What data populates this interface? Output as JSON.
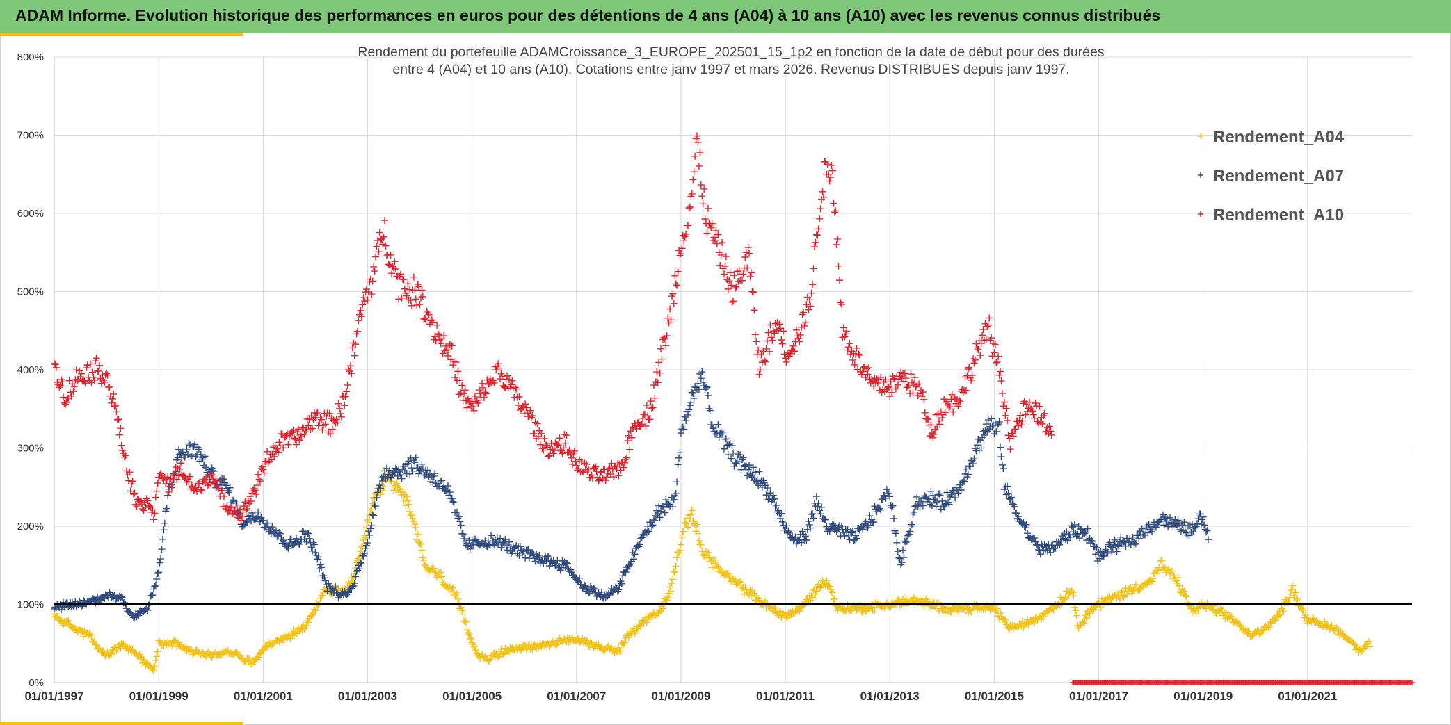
{
  "header": {
    "title": "ADAM Informe. Evolution historique des performances en euros pour des détentions de 4 ans (A04) à 10 ans (A10) avec les revenus connus distribués"
  },
  "colors": {
    "header_bg": "#7fc87a",
    "accent_bar": "#f2c21a",
    "a04": "#f2c21a",
    "a07": "#2e4a7d",
    "a10": "#e0202a",
    "reference_line": "#000000",
    "grid": "#d9d9d9"
  },
  "chart_data": {
    "type": "scatter",
    "title_line1": "Rendement du portefeuille ADAMCroissance_3_EUROPE_202501_15_1p2  en fonction de la date de début pour des durées",
    "title_line2": "entre 4 (A04) et 10 ans (A10). Cotations entre janv 1997 et mars 2026. Revenus DISTRIBUES depuis janv 1997.",
    "xlabel": "",
    "ylabel": "",
    "xlim": [
      1997.0,
      2023.0
    ],
    "ylim": [
      0,
      800
    ],
    "y_ticks": [
      0,
      100,
      200,
      300,
      400,
      500,
      600,
      700,
      800
    ],
    "y_tick_labels": [
      "0%",
      "100%",
      "200%",
      "300%",
      "400%",
      "500%",
      "600%",
      "700%",
      "800%"
    ],
    "x_ticks": [
      1997,
      1999,
      2001,
      2003,
      2005,
      2007,
      2009,
      2011,
      2013,
      2015,
      2017,
      2019,
      2021
    ],
    "x_tick_labels": [
      "01/01/1997",
      "01/01/1999",
      "01/01/2001",
      "01/01/2003",
      "01/01/2005",
      "01/01/2007",
      "01/01/2009",
      "01/01/2011",
      "01/01/2013",
      "01/01/2015",
      "01/01/2017",
      "01/01/2019",
      "01/01/2021"
    ],
    "grid": true,
    "legend_position": "top-right",
    "reference_line_y": 100,
    "zero_markers_x_range": [
      2016.5,
      2023.0
    ],
    "series": [
      {
        "name": "Rendement_A04",
        "color": "#f2c21a",
        "marker": "+",
        "x_start": 1997.0,
        "x_end": 2022.2,
        "keypoints": [
          [
            1997.0,
            85
          ],
          [
            1997.5,
            65
          ],
          [
            1997.7,
            60
          ],
          [
            1997.8,
            45
          ],
          [
            1998.0,
            35
          ],
          [
            1998.3,
            48
          ],
          [
            1998.6,
            35
          ],
          [
            1998.9,
            15
          ],
          [
            1999.0,
            50
          ],
          [
            1999.3,
            52
          ],
          [
            1999.6,
            40
          ],
          [
            2000.0,
            35
          ],
          [
            2000.4,
            40
          ],
          [
            2000.8,
            25
          ],
          [
            2001.0,
            45
          ],
          [
            2001.5,
            60
          ],
          [
            2001.8,
            70
          ],
          [
            2002.0,
            95
          ],
          [
            2002.2,
            120
          ],
          [
            2002.5,
            115
          ],
          [
            2002.7,
            130
          ],
          [
            2002.9,
            170
          ],
          [
            2003.1,
            230
          ],
          [
            2003.4,
            265
          ],
          [
            2003.7,
            240
          ],
          [
            2003.9,
            200
          ],
          [
            2004.1,
            150
          ],
          [
            2004.4,
            135
          ],
          [
            2004.7,
            110
          ],
          [
            2004.9,
            70
          ],
          [
            2005.1,
            35
          ],
          [
            2005.3,
            30
          ],
          [
            2005.6,
            40
          ],
          [
            2006.0,
            45
          ],
          [
            2006.5,
            50
          ],
          [
            2007.0,
            55
          ],
          [
            2007.5,
            45
          ],
          [
            2007.8,
            40
          ],
          [
            2008.0,
            60
          ],
          [
            2008.3,
            80
          ],
          [
            2008.6,
            90
          ],
          [
            2008.8,
            120
          ],
          [
            2009.0,
            180
          ],
          [
            2009.2,
            220
          ],
          [
            2009.4,
            170
          ],
          [
            2009.8,
            140
          ],
          [
            2010.2,
            120
          ],
          [
            2010.6,
            100
          ],
          [
            2011.0,
            85
          ],
          [
            2011.3,
            95
          ],
          [
            2011.6,
            120
          ],
          [
            2011.8,
            130
          ],
          [
            2012.0,
            95
          ],
          [
            2012.5,
            95
          ],
          [
            2013.0,
            100
          ],
          [
            2013.5,
            105
          ],
          [
            2014.0,
            95
          ],
          [
            2014.5,
            95
          ],
          [
            2015.0,
            95
          ],
          [
            2015.3,
            70
          ],
          [
            2015.6,
            75
          ],
          [
            2015.9,
            85
          ],
          [
            2016.2,
            100
          ],
          [
            2016.5,
            120
          ],
          [
            2016.6,
            70
          ],
          [
            2016.8,
            90
          ],
          [
            2017.0,
            100
          ],
          [
            2017.5,
            115
          ],
          [
            2018.0,
            130
          ],
          [
            2018.2,
            150
          ],
          [
            2018.5,
            130
          ],
          [
            2018.8,
            90
          ],
          [
            2019.0,
            100
          ],
          [
            2019.3,
            90
          ],
          [
            2019.6,
            80
          ],
          [
            2019.9,
            60
          ],
          [
            2020.2,
            70
          ],
          [
            2020.5,
            90
          ],
          [
            2020.7,
            120
          ],
          [
            2021.0,
            80
          ],
          [
            2021.5,
            70
          ],
          [
            2021.8,
            55
          ],
          [
            2022.0,
            40
          ],
          [
            2022.2,
            50
          ]
        ]
      },
      {
        "name": "Rendement_A07",
        "color": "#2e4a7d",
        "marker": "+",
        "x_start": 1997.0,
        "x_end": 2019.1,
        "keypoints": [
          [
            1997.0,
            95
          ],
          [
            1997.4,
            100
          ],
          [
            1997.8,
            105
          ],
          [
            1998.0,
            112
          ],
          [
            1998.3,
            108
          ],
          [
            1998.5,
            85
          ],
          [
            1998.8,
            95
          ],
          [
            1999.0,
            140
          ],
          [
            1999.2,
            250
          ],
          [
            1999.4,
            290
          ],
          [
            1999.7,
            300
          ],
          [
            2000.0,
            265
          ],
          [
            2000.3,
            250
          ],
          [
            2000.6,
            205
          ],
          [
            2000.9,
            215
          ],
          [
            2001.2,
            195
          ],
          [
            2001.5,
            175
          ],
          [
            2001.8,
            190
          ],
          [
            2002.0,
            170
          ],
          [
            2002.2,
            125
          ],
          [
            2002.5,
            110
          ],
          [
            2002.7,
            120
          ],
          [
            2002.9,
            160
          ],
          [
            2003.1,
            210
          ],
          [
            2003.3,
            270
          ],
          [
            2003.6,
            270
          ],
          [
            2003.9,
            280
          ],
          [
            2004.2,
            265
          ],
          [
            2004.5,
            250
          ],
          [
            2004.7,
            215
          ],
          [
            2004.9,
            175
          ],
          [
            2005.2,
            180
          ],
          [
            2005.5,
            180
          ],
          [
            2006.0,
            165
          ],
          [
            2006.5,
            155
          ],
          [
            2006.8,
            150
          ],
          [
            2007.1,
            125
          ],
          [
            2007.5,
            110
          ],
          [
            2007.8,
            120
          ],
          [
            2008.0,
            150
          ],
          [
            2008.3,
            190
          ],
          [
            2008.6,
            220
          ],
          [
            2008.9,
            235
          ],
          [
            2009.0,
            320
          ],
          [
            2009.2,
            360
          ],
          [
            2009.4,
            395
          ],
          [
            2009.6,
            330
          ],
          [
            2010.0,
            290
          ],
          [
            2010.5,
            260
          ],
          [
            2010.8,
            230
          ],
          [
            2011.0,
            195
          ],
          [
            2011.2,
            180
          ],
          [
            2011.4,
            190
          ],
          [
            2011.6,
            230
          ],
          [
            2011.8,
            200
          ],
          [
            2012.0,
            195
          ],
          [
            2012.3,
            185
          ],
          [
            2012.6,
            205
          ],
          [
            2013.0,
            245
          ],
          [
            2013.2,
            150
          ],
          [
            2013.5,
            230
          ],
          [
            2013.8,
            235
          ],
          [
            2014.0,
            230
          ],
          [
            2014.3,
            245
          ],
          [
            2014.6,
            290
          ],
          [
            2014.9,
            330
          ],
          [
            2015.1,
            320
          ],
          [
            2015.2,
            250
          ],
          [
            2015.4,
            220
          ],
          [
            2015.7,
            185
          ],
          [
            2015.9,
            170
          ],
          [
            2016.2,
            175
          ],
          [
            2016.5,
            195
          ],
          [
            2016.8,
            190
          ],
          [
            2017.0,
            160
          ],
          [
            2017.3,
            175
          ],
          [
            2017.6,
            180
          ],
          [
            2017.9,
            195
          ],
          [
            2018.2,
            210
          ],
          [
            2018.5,
            200
          ],
          [
            2018.8,
            195
          ],
          [
            2019.0,
            215
          ],
          [
            2019.1,
            180
          ]
        ]
      },
      {
        "name": "Rendement_A10",
        "color": "#e0202a",
        "marker": "+",
        "x_start": 1997.0,
        "x_end": 2016.1,
        "keypoints": [
          [
            1997.0,
            410
          ],
          [
            1997.2,
            365
          ],
          [
            1997.5,
            395
          ],
          [
            1997.8,
            400
          ],
          [
            1998.0,
            395
          ],
          [
            1998.2,
            340
          ],
          [
            1998.4,
            270
          ],
          [
            1998.6,
            225
          ],
          [
            1998.8,
            230
          ],
          [
            1998.9,
            210
          ],
          [
            1999.0,
            270
          ],
          [
            1999.2,
            250
          ],
          [
            1999.4,
            275
          ],
          [
            1999.7,
            245
          ],
          [
            2000.0,
            265
          ],
          [
            2000.3,
            225
          ],
          [
            2000.6,
            215
          ],
          [
            2000.9,
            255
          ],
          [
            2001.1,
            290
          ],
          [
            2001.4,
            310
          ],
          [
            2001.7,
            315
          ],
          [
            2002.0,
            340
          ],
          [
            2002.3,
            330
          ],
          [
            2002.5,
            350
          ],
          [
            2002.7,
            410
          ],
          [
            2002.9,
            480
          ],
          [
            2003.1,
            520
          ],
          [
            2003.3,
            580
          ],
          [
            2003.6,
            510
          ],
          [
            2004.0,
            495
          ],
          [
            2004.3,
            450
          ],
          [
            2004.6,
            420
          ],
          [
            2004.8,
            370
          ],
          [
            2005.0,
            350
          ],
          [
            2005.3,
            380
          ],
          [
            2005.5,
            400
          ],
          [
            2005.8,
            370
          ],
          [
            2006.1,
            340
          ],
          [
            2006.4,
            300
          ],
          [
            2006.8,
            305
          ],
          [
            2007.0,
            280
          ],
          [
            2007.3,
            265
          ],
          [
            2007.6,
            265
          ],
          [
            2007.9,
            280
          ],
          [
            2008.1,
            330
          ],
          [
            2008.4,
            345
          ],
          [
            2008.6,
            410
          ],
          [
            2008.8,
            470
          ],
          [
            2009.0,
            560
          ],
          [
            2009.2,
            620
          ],
          [
            2009.3,
            690
          ],
          [
            2009.5,
            590
          ],
          [
            2009.8,
            540
          ],
          [
            2010.0,
            500
          ],
          [
            2010.3,
            545
          ],
          [
            2010.5,
            400
          ],
          [
            2010.7,
            440
          ],
          [
            2010.9,
            460
          ],
          [
            2011.0,
            420
          ],
          [
            2011.3,
            450
          ],
          [
            2011.5,
            500
          ],
          [
            2011.7,
            640
          ],
          [
            2011.9,
            660
          ],
          [
            2012.1,
            450
          ],
          [
            2012.4,
            410
          ],
          [
            2012.7,
            380
          ],
          [
            2013.0,
            380
          ],
          [
            2013.3,
            390
          ],
          [
            2013.6,
            370
          ],
          [
            2013.8,
            320
          ],
          [
            2014.0,
            350
          ],
          [
            2014.4,
            370
          ],
          [
            2014.7,
            430
          ],
          [
            2014.9,
            450
          ],
          [
            2015.1,
            400
          ],
          [
            2015.3,
            310
          ],
          [
            2015.6,
            350
          ],
          [
            2015.9,
            340
          ],
          [
            2016.1,
            320
          ]
        ]
      }
    ]
  }
}
